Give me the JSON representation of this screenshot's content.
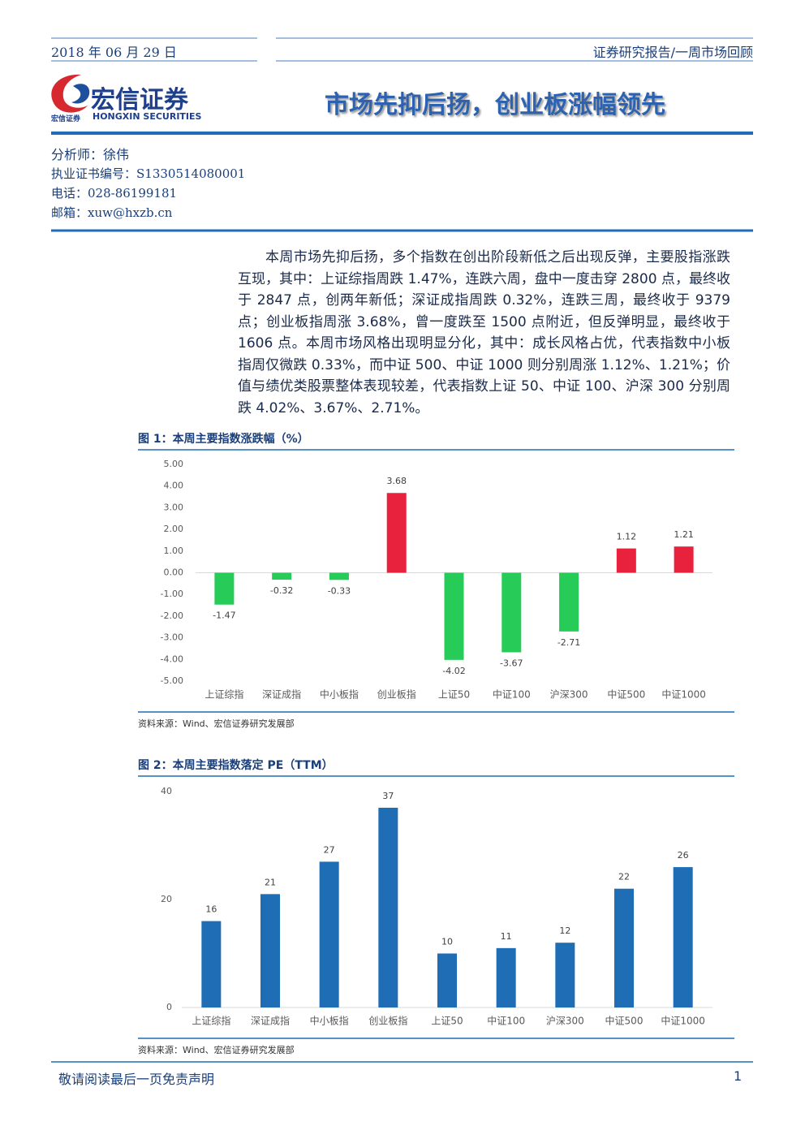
{
  "header": {
    "date": "2018 年 06 月 29 日",
    "report_type": "证券研究报告/一周市场回顾",
    "logo_cn": "宏信证券",
    "logo_small": "宏信证券",
    "logo_en": "HONGXIN SECURITIES",
    "title": "市场先抑后扬，创业板涨幅领先"
  },
  "analyst": {
    "name": "分析师：徐伟",
    "license": "执业证书编号：S1330514080001",
    "phone": "电话：028-86199181",
    "email": "邮箱：xuw@hxzb.cn"
  },
  "summary": "本周市场先抑后扬，多个指数在创出阶段新低之后出现反弹，主要股指涨跌互现，其中：上证综指周跌 1.47%，连跌六周，盘中一度击穿 2800 点，最终收于 2847 点，创两年新低；深证成指周跌 0.32%，连跌三周，最终收于 9379 点；创业板指周涨 3.68%，曾一度跌至 1500 点附近，但反弹明显，最终收于 1606 点。本周市场风格出现明显分化，其中：成长风格占优，代表指数中小板指周仅微跌 0.33%，而中证 500、中证 1000 则分别周涨 1.12%、1.21%；价值与绩优类股票整体表现较差，代表指数上证 50、中证 100、沪深 300 分别周跌 4.02%、3.67%、2.71%。",
  "chart_data": [
    {
      "type": "bar",
      "title": "图 1：本周主要指数涨跌幅（%）",
      "source": "资料来源：Wind、宏信证券研究发展部",
      "categories": [
        "上证综指",
        "深证成指",
        "中小板指",
        "创业板指",
        "上证50",
        "中证100",
        "沪深300",
        "中证500",
        "中证1000"
      ],
      "values": [
        -1.47,
        -0.32,
        -0.33,
        3.68,
        -4.02,
        -3.67,
        -2.71,
        1.12,
        1.21
      ],
      "positive_color": "#e8213d",
      "negative_color": "#27cc58",
      "ylim": [
        -5,
        5
      ],
      "yticks": [
        {
          "value": -5,
          "label": "-5.00"
        },
        {
          "value": -4,
          "label": "-4.00"
        },
        {
          "value": -3,
          "label": "-3.00"
        },
        {
          "value": -2,
          "label": "-2.00"
        },
        {
          "value": -1,
          "label": "-1.00"
        },
        {
          "value": 0,
          "label": "0.00"
        },
        {
          "value": 1,
          "label": "1.00"
        },
        {
          "value": 2,
          "label": "2.00"
        },
        {
          "value": 3,
          "label": "3.00"
        },
        {
          "value": 4,
          "label": "4.00"
        },
        {
          "value": 5,
          "label": "5.00"
        }
      ],
      "grid": false
    },
    {
      "type": "bar",
      "title": "图 2：本周主要指数落定 PE（TTM）",
      "source": "资料来源：Wind、宏信证券研究发展部",
      "categories": [
        "上证综指",
        "深证成指",
        "中小板指",
        "创业板指",
        "上证50",
        "中证100",
        "沪深300",
        "中证500",
        "中证1000"
      ],
      "values": [
        16,
        21,
        27,
        37,
        10,
        11,
        12,
        22,
        26
      ],
      "color": "#1f6db5",
      "ylim": [
        0,
        40
      ],
      "yticks": [
        0,
        20,
        40
      ],
      "grid": false
    }
  ],
  "footer": {
    "disclaimer": "敬请阅读最后一页免责声明",
    "page": "1"
  }
}
